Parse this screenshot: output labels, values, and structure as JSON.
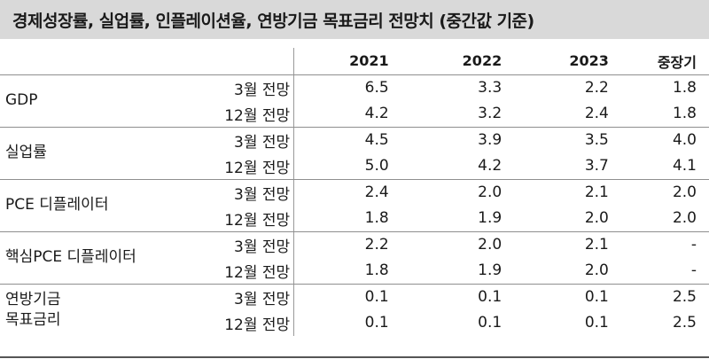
{
  "title": "경제성장률, 실업률, 인플레이션율, 연방기금 목표금리 전망치 (중간값 기준)",
  "columns": [
    "2021",
    "2022",
    "2023",
    "중장기"
  ],
  "groups": [
    {
      "label": "GDP",
      "rows": [
        {
          "sub": "3월 전망",
          "values": [
            "6.5",
            "3.3",
            "2.2",
            "1.8"
          ]
        },
        {
          "sub": "12월 전망",
          "values": [
            "4.2",
            "3.2",
            "2.4",
            "1.8"
          ]
        }
      ]
    },
    {
      "label": "실업률",
      "rows": [
        {
          "sub": "3월 전망",
          "values": [
            "4.5",
            "3.9",
            "3.5",
            "4.0"
          ]
        },
        {
          "sub": "12월 전망",
          "values": [
            "5.0",
            "4.2",
            "3.7",
            "4.1"
          ]
        }
      ]
    },
    {
      "label": "PCE 디플레이터",
      "rows": [
        {
          "sub": "3월 전망",
          "values": [
            "2.4",
            "2.0",
            "2.1",
            "2.0"
          ]
        },
        {
          "sub": "12월 전망",
          "values": [
            "1.8",
            "1.9",
            "2.0",
            "2.0"
          ]
        }
      ]
    },
    {
      "label": "핵심PCE 디플레이터",
      "rows": [
        {
          "sub": "3월 전망",
          "values": [
            "2.2",
            "2.0",
            "2.1",
            "-"
          ]
        },
        {
          "sub": "12월 전망",
          "values": [
            "1.8",
            "1.9",
            "2.0",
            "-"
          ]
        }
      ]
    },
    {
      "label_line1": "연방기금",
      "label_line2": "목표금리",
      "rows": [
        {
          "sub": "3월 전망",
          "values": [
            "0.1",
            "0.1",
            "0.1",
            "2.5"
          ]
        },
        {
          "sub": "12월 전망",
          "values": [
            "0.1",
            "0.1",
            "0.1",
            "2.5"
          ]
        }
      ]
    }
  ]
}
